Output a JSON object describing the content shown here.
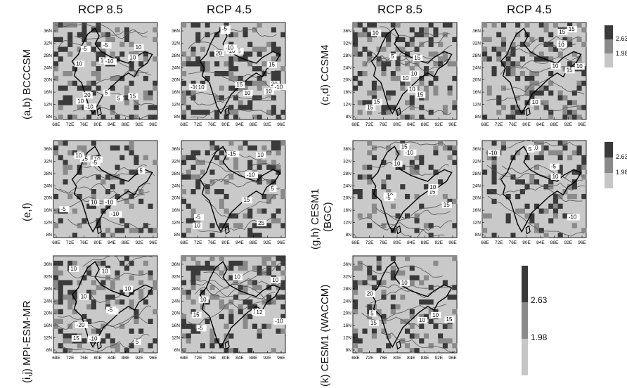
{
  "column_headers": {
    "left": [
      "RCP 8.5",
      "RCP 4.5"
    ],
    "right": [
      "RCP 8.5",
      "RCP 4.5"
    ]
  },
  "row_labels": {
    "ab": "(a,b) BCCCSM",
    "ef": "(e,f)",
    "ij": "(i,j) MPI-ESM-MR",
    "cd": "(c,d) CCSM4",
    "gh_line1": "(g,h) CESM1",
    "gh_line2": "(BGC)",
    "k": "(k) CESM1 (WACCM)"
  },
  "map_axes": {
    "lat_ticks": [
      "36N",
      "32N",
      "28N",
      "24N",
      "20N",
      "16N",
      "12N",
      "8N"
    ],
    "lon_ticks": [
      "68E",
      "72E",
      "76E",
      "80E",
      "84E",
      "88E",
      "92E",
      "96E"
    ]
  },
  "colorbar": {
    "levels": [
      "2.63",
      "1.98"
    ],
    "colors": [
      "#3a3a3a",
      "#8a8a8a",
      "#c6c6c6"
    ]
  },
  "contour_labels": {
    "ab_85": [
      "10",
      "15",
      "10",
      "-10",
      "5",
      "20",
      "15",
      "10",
      "-5",
      "-10",
      "10",
      "-5",
      "5"
    ],
    "ab_45": [
      "-10",
      "10",
      "-15",
      "20",
      "15",
      "10",
      "20",
      "-10",
      "-5",
      "-10",
      "15",
      "10",
      "-5",
      "-10"
    ],
    "cd_85": [
      "10",
      "5",
      "10",
      "15",
      "10",
      "15",
      "15",
      "10",
      "15"
    ],
    "cd_45": [
      "10",
      "15",
      "15",
      "10",
      "10",
      "15",
      "10",
      "10"
    ],
    "ef_85": [
      "10",
      "15",
      "-10",
      "-5",
      "10",
      "-10",
      "5",
      "-5",
      "10"
    ],
    "ef_45": [
      "25",
      "15",
      "10",
      "-10",
      "-15",
      "5",
      "10",
      "-5"
    ],
    "gh_85": [
      "15",
      "10",
      "-10",
      "15",
      "-10",
      "-5",
      "10",
      "15"
    ],
    "gh_45": [
      "-5",
      "-10",
      "-10",
      "10",
      "-10",
      "5"
    ],
    "ij_85": [
      "10",
      "-5",
      "-10",
      "-20",
      "10",
      "5",
      "10",
      "-5",
      "15",
      "10"
    ],
    "ij_45": [
      "10",
      "-5",
      "-10",
      "15",
      "10",
      "10",
      "-5",
      "15",
      "12"
    ],
    "k": [
      "20",
      "15",
      "10",
      "15",
      "5",
      "10",
      "10"
    ]
  }
}
